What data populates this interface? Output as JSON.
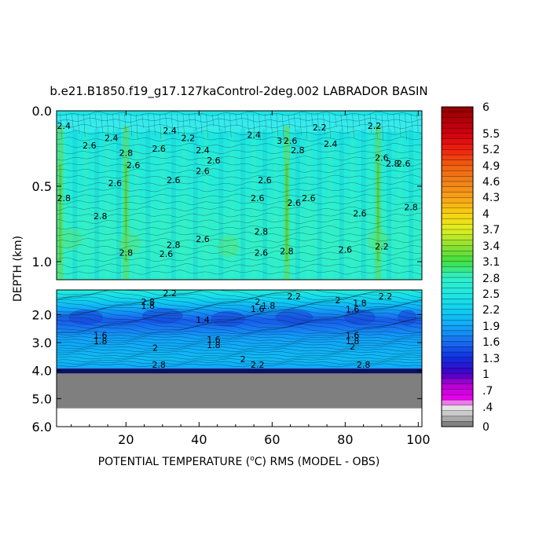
{
  "chart_data": {
    "type": "heatmap",
    "title": "b.e21.B1850.f19_g17.127kaControl-2deg.002 LABRADOR BASIN",
    "xlabel_main": "POTENTIAL TEMPERATURE (",
    "xlabel_deg": "o",
    "xlabel_rest": "C) RMS (MODEL - OBS)",
    "ylabel": "DEPTH (km)",
    "xlim": [
      1,
      101
    ],
    "x_ticks": [
      "20",
      "40",
      "60",
      "80",
      "100"
    ],
    "x_tick_values": [
      20,
      40,
      60,
      80,
      100
    ],
    "upper_panel": {
      "ylim_km": [
        0.0,
        1.12
      ],
      "y_ticks": [
        "0.0",
        "0.5",
        "1.0"
      ],
      "y_tick_values": [
        0.0,
        0.5,
        1.0
      ]
    },
    "lower_panel": {
      "ylim_km": [
        1.12,
        6.0
      ],
      "y_ticks": [
        "2.0",
        "3.0",
        "4.0",
        "5.0",
        "6.0"
      ],
      "y_tick_values": [
        2.0,
        3.0,
        4.0,
        5.0,
        6.0
      ],
      "ocean_floor_km": 4.1,
      "no_data_below_km": 5.35
    },
    "colorbar_labels": [
      "6",
      "5.5",
      "5.2",
      "4.9",
      "4.6",
      "4.3",
      "4",
      "3.7",
      "3.4",
      "3.1",
      "2.8",
      "2.5",
      "2.2",
      "1.9",
      "1.6",
      "1.3",
      "1",
      ".7",
      ".4",
      "0"
    ],
    "colorbar_label_values": [
      6,
      5.5,
      5.2,
      4.9,
      4.6,
      4.3,
      4,
      3.7,
      3.4,
      3.1,
      2.8,
      2.5,
      2.2,
      1.9,
      1.6,
      1.3,
      1,
      0.7,
      0.4,
      0
    ],
    "colors": {
      "base_upper": "#2ee8d2",
      "base_lower": "#1fd4e0",
      "light_band": "#4ff5f0",
      "green_stripe": "#6ad84a",
      "band_deep": "#1848d8",
      "band_mid": "#1a86f0",
      "floor": "#7f7f7f",
      "floor_line": "#101060",
      "no_data": "#ffffff"
    },
    "upper_profile_km": [
      0.0,
      0.05,
      0.15,
      0.3,
      0.5,
      0.7,
      0.9,
      1.12
    ],
    "upper_profile_values": [
      2.5,
      2.3,
      2.45,
      2.6,
      2.6,
      2.75,
      2.8,
      2.7
    ],
    "lower_profile_km": [
      1.12,
      1.3,
      1.6,
      1.9,
      2.2,
      2.5,
      2.8,
      3.2,
      3.6,
      3.9,
      4.1
    ],
    "lower_profile_values": [
      2.6,
      2.4,
      2.1,
      1.8,
      1.5,
      1.65,
      1.85,
      1.95,
      2.05,
      1.9,
      1.2
    ],
    "green_stripes_x": [
      2,
      20,
      64,
      89
    ],
    "contour_labels_upper": [
      {
        "text": "2.4",
        "x": 3,
        "d": 0.12
      },
      {
        "text": "2.6",
        "x": 10,
        "d": 0.25
      },
      {
        "text": "2.4",
        "x": 16,
        "d": 0.2
      },
      {
        "text": "2.8",
        "x": 20,
        "d": 0.3
      },
      {
        "text": "2.6",
        "x": 22,
        "d": 0.38
      },
      {
        "text": "2.6",
        "x": 29,
        "d": 0.27
      },
      {
        "text": "2.4",
        "x": 32,
        "d": 0.15
      },
      {
        "text": "2.2",
        "x": 37,
        "d": 0.2
      },
      {
        "text": "2.4",
        "x": 41,
        "d": 0.28
      },
      {
        "text": "2.6",
        "x": 44,
        "d": 0.35
      },
      {
        "text": "2.6",
        "x": 41,
        "d": 0.42
      },
      {
        "text": "2.6",
        "x": 33,
        "d": 0.48
      },
      {
        "text": "2.6",
        "x": 17,
        "d": 0.5
      },
      {
        "text": "2.4",
        "x": 55,
        "d": 0.18
      },
      {
        "text": "2.6",
        "x": 58,
        "d": 0.48
      },
      {
        "text": "3",
        "x": 62,
        "d": 0.22
      },
      {
        "text": "2.6",
        "x": 65,
        "d": 0.22
      },
      {
        "text": "2.8",
        "x": 67,
        "d": 0.28
      },
      {
        "text": "2.2",
        "x": 73,
        "d": 0.13
      },
      {
        "text": "2.4",
        "x": 76,
        "d": 0.24
      },
      {
        "text": "2.2",
        "x": 88,
        "d": 0.12
      },
      {
        "text": "2.6",
        "x": 90,
        "d": 0.33
      },
      {
        "text": "2.8",
        "x": 93,
        "d": 0.37
      },
      {
        "text": "2.6",
        "x": 96,
        "d": 0.37
      },
      {
        "text": "2.8",
        "x": 3,
        "d": 0.6
      },
      {
        "text": "2.6",
        "x": 56,
        "d": 0.6
      },
      {
        "text": "2.6",
        "x": 66,
        "d": 0.63
      },
      {
        "text": "2.6",
        "x": 70,
        "d": 0.6
      },
      {
        "text": "2.6",
        "x": 84,
        "d": 0.7
      },
      {
        "text": "2.8",
        "x": 98,
        "d": 0.66
      },
      {
        "text": "2.8",
        "x": 13,
        "d": 0.72
      },
      {
        "text": "2.8",
        "x": 57,
        "d": 0.82
      },
      {
        "text": "2.8",
        "x": 33,
        "d": 0.91
      },
      {
        "text": "2.6",
        "x": 31,
        "d": 0.97
      },
      {
        "text": "2.6",
        "x": 41,
        "d": 0.87
      },
      {
        "text": "2.8",
        "x": 20,
        "d": 0.96
      },
      {
        "text": "2.6",
        "x": 57,
        "d": 0.96
      },
      {
        "text": "2.8",
        "x": 64,
        "d": 0.95
      },
      {
        "text": "2.6",
        "x": 80,
        "d": 0.94
      },
      {
        "text": "2.2",
        "x": 90,
        "d": 0.92
      }
    ],
    "contour_labels_lower": [
      {
        "text": "2.2",
        "x": 32,
        "d": 1.35
      },
      {
        "text": "2.8",
        "x": 26,
        "d": 1.65
      },
      {
        "text": "1.8",
        "x": 26,
        "d": 1.8
      },
      {
        "text": "2",
        "x": 56,
        "d": 1.65
      },
      {
        "text": "1.8",
        "x": 59,
        "d": 1.8
      },
      {
        "text": "1.6",
        "x": 56,
        "d": 1.9
      },
      {
        "text": "2.2",
        "x": 66,
        "d": 1.45
      },
      {
        "text": "2",
        "x": 78,
        "d": 1.6
      },
      {
        "text": "1.8",
        "x": 84,
        "d": 1.7
      },
      {
        "text": "1.6",
        "x": 82,
        "d": 1.92
      },
      {
        "text": "2.2",
        "x": 91,
        "d": 1.45
      },
      {
        "text": "1.4",
        "x": 41,
        "d": 2.3
      },
      {
        "text": "1.6",
        "x": 13,
        "d": 2.85
      },
      {
        "text": "1.8",
        "x": 13,
        "d": 3.05
      },
      {
        "text": "1.6",
        "x": 44,
        "d": 3.0
      },
      {
        "text": "1.8",
        "x": 44,
        "d": 3.2
      },
      {
        "text": "2",
        "x": 28,
        "d": 3.3
      },
      {
        "text": "1.6",
        "x": 82,
        "d": 2.85
      },
      {
        "text": "1.8",
        "x": 82,
        "d": 3.05
      },
      {
        "text": "2",
        "x": 82,
        "d": 3.25
      },
      {
        "text": "2",
        "x": 52,
        "d": 3.7
      },
      {
        "text": "2.8",
        "x": 29,
        "d": 3.9
      },
      {
        "text": "2.2",
        "x": 56,
        "d": 3.9
      },
      {
        "text": "2.8",
        "x": 85,
        "d": 3.9
      }
    ]
  }
}
